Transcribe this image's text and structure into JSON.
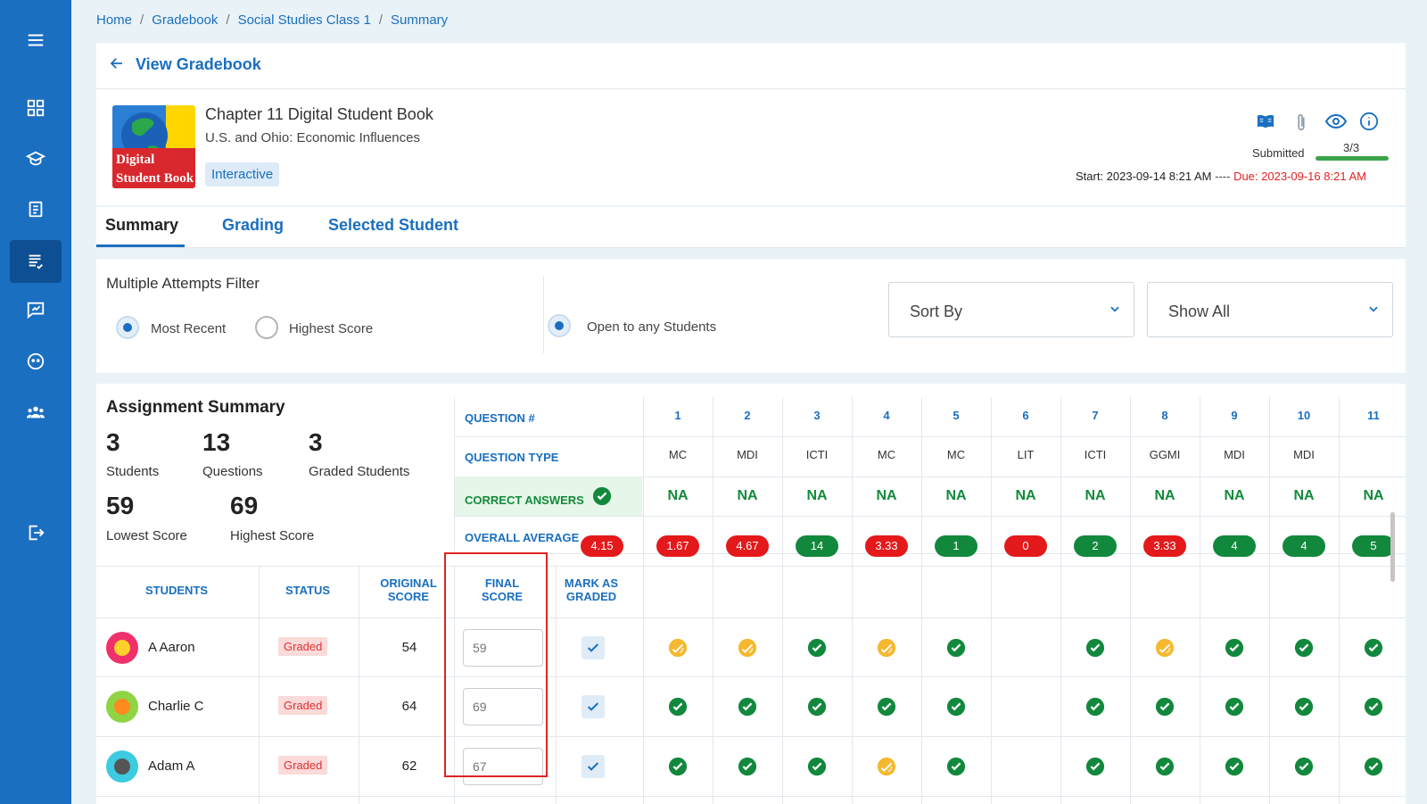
{
  "breadcrumb": [
    "Home",
    "Gradebook",
    "Social Studies Class 1",
    "Summary"
  ],
  "back_label": "View Gradebook",
  "book_image_text": [
    "Digital",
    "Student Book"
  ],
  "assignment": {
    "title": "Chapter 11 Digital Student Book",
    "subtitle": "U.S. and Ohio: Economic Influences",
    "chip": "Interactive",
    "submitted_label": "Submitted",
    "submitted_count": "3/3",
    "submitted_progress": 1.0,
    "start": "Start: 2023-09-14 8:21 AM",
    "date_sep": "----",
    "due": "Due: 2023-09-16 8:21 AM"
  },
  "tabs": [
    "Summary",
    "Grading",
    "Selected Student"
  ],
  "filter": {
    "title": "Multiple Attempts Filter",
    "opt_recent": "Most Recent",
    "opt_highest": "Highest Score",
    "opt_open": "Open to any Students",
    "sort_label": "Sort By",
    "show_label": "Show All"
  },
  "summary": {
    "title": "Assignment Summary",
    "students_num": "3",
    "students_lbl": "Students",
    "questions_num": "13",
    "questions_lbl": "Questions",
    "graded_num": "3",
    "graded_lbl": "Graded Students",
    "lowest_num": "59",
    "lowest_lbl": "Lowest Score",
    "highest_num": "69",
    "highest_lbl": "Highest Score"
  },
  "grid_labels": {
    "question_num": "QUESTION #",
    "question_type": "QUESTION TYPE",
    "correct_answers": "CORRECT ANSWERS",
    "overall_average": "OVERALL AVERAGE",
    "overall_value": "4.15"
  },
  "columns": {
    "students": "STUDENTS",
    "status": "STATUS",
    "original_l1": "ORIGINAL",
    "original_l2": "SCORE",
    "final_l1": "FINAL",
    "final_l2": "SCORE",
    "mark_l1": "MARK AS",
    "mark_l2": "GRADED"
  },
  "questions": [
    {
      "n": "1",
      "t": "MC",
      "a": "NA",
      "avg": "1.67",
      "c": "red"
    },
    {
      "n": "2",
      "t": "MDI",
      "a": "NA",
      "avg": "4.67",
      "c": "red"
    },
    {
      "n": "3",
      "t": "ICTI",
      "a": "NA",
      "avg": "14",
      "c": "green"
    },
    {
      "n": "4",
      "t": "MC",
      "a": "NA",
      "avg": "3.33",
      "c": "red"
    },
    {
      "n": "5",
      "t": "MC",
      "a": "NA",
      "avg": "1",
      "c": "green"
    },
    {
      "n": "6",
      "t": "LIT",
      "a": "NA",
      "avg": "0",
      "c": "red"
    },
    {
      "n": "7",
      "t": "ICTI",
      "a": "NA",
      "avg": "2",
      "c": "green"
    },
    {
      "n": "8",
      "t": "GGMI",
      "a": "NA",
      "avg": "3.33",
      "c": "red"
    },
    {
      "n": "9",
      "t": "MDI",
      "a": "NA",
      "avg": "4",
      "c": "green"
    },
    {
      "n": "10",
      "t": "MDI",
      "a": "NA",
      "avg": "4",
      "c": "green"
    },
    {
      "n": "11",
      "t": "",
      "a": "NA",
      "avg": "5",
      "c": "green"
    }
  ],
  "students": [
    {
      "name": "A Aaron",
      "status": "Graded",
      "original": "54",
      "final_placeholder": "59",
      "marks": [
        "partial",
        "partial",
        "correct",
        "partial",
        "correct",
        "none",
        "correct",
        "partial",
        "correct",
        "correct",
        "correct"
      ]
    },
    {
      "name": "Charlie C",
      "status": "Graded",
      "original": "64",
      "final_placeholder": "69",
      "marks": [
        "correct",
        "correct",
        "correct",
        "correct",
        "correct",
        "none",
        "correct",
        "correct",
        "correct",
        "correct",
        "correct"
      ]
    },
    {
      "name": "Adam A",
      "status": "Graded",
      "original": "62",
      "final_placeholder": "67",
      "marks": [
        "correct",
        "correct",
        "correct",
        "partial",
        "correct",
        "none",
        "correct",
        "correct",
        "correct",
        "correct",
        "correct"
      ]
    }
  ],
  "colors": {
    "primary": "#1a6fc0",
    "sidebar": "#1a6fc0",
    "green": "#12883d",
    "red": "#e3191b",
    "partial": "#f5b82e"
  }
}
